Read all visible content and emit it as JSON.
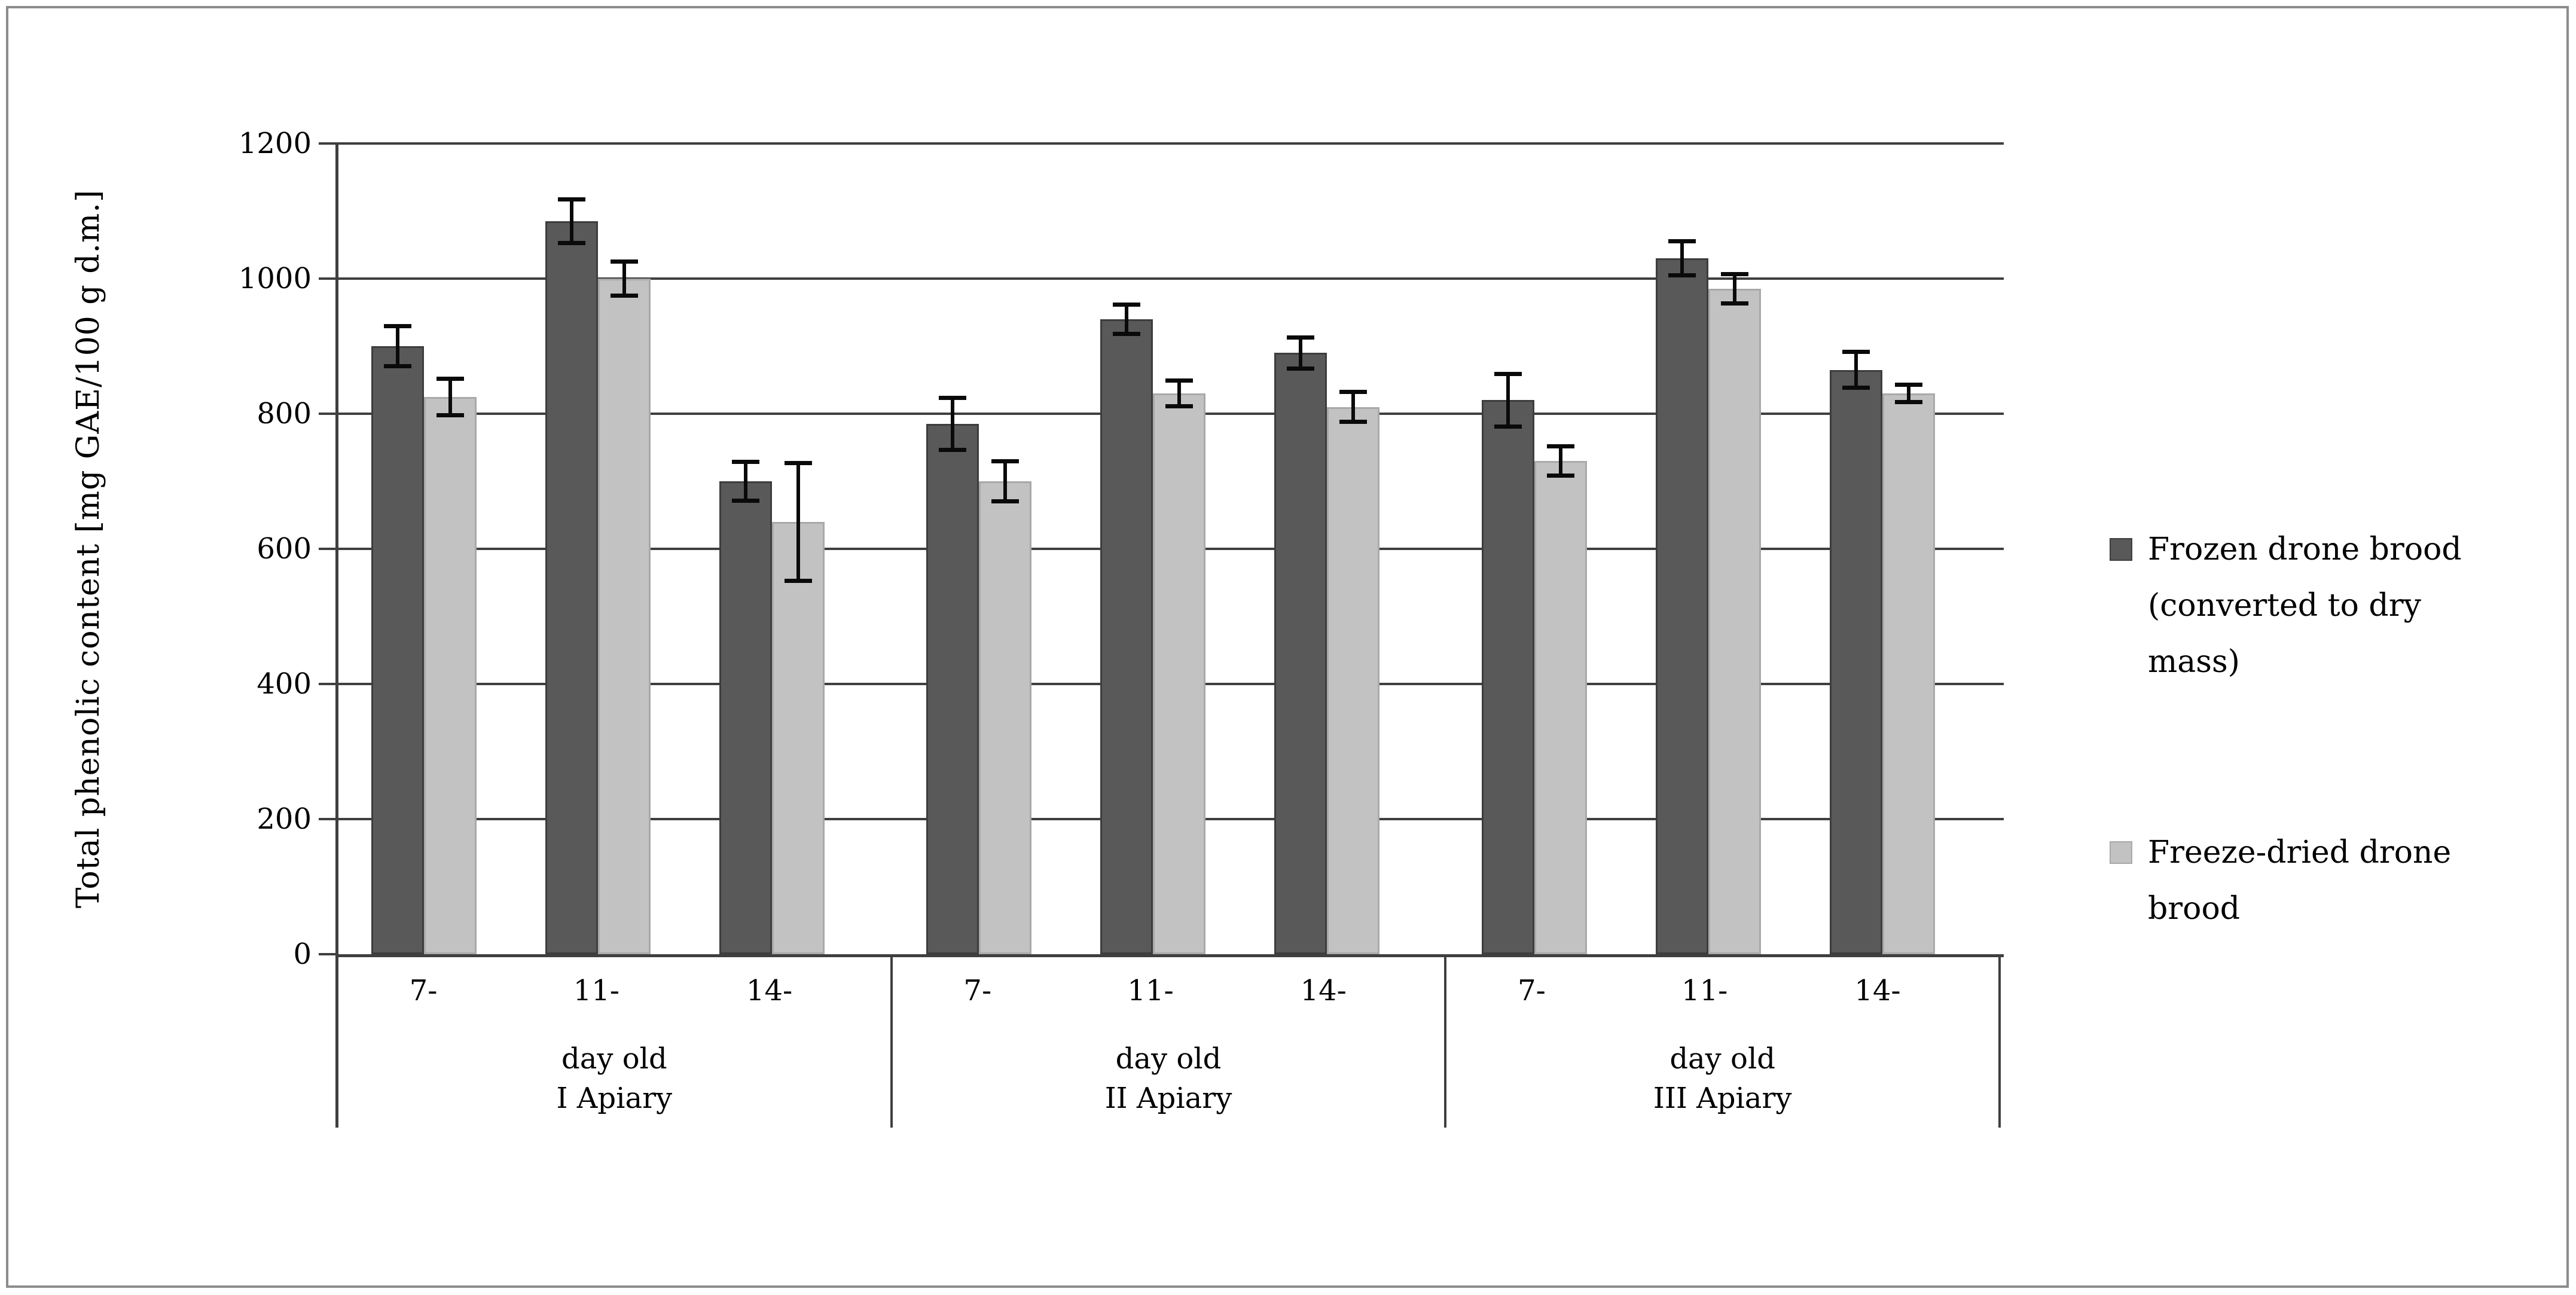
{
  "figure": {
    "background": "#ffffff",
    "frame_color": "#8c8c8c"
  },
  "colors": {
    "frozen_series": "#595959",
    "freeze_dried_series": "#c2c2c2",
    "gridline": "#3f3f3f",
    "axis": "#3f3f3f",
    "error_bar": "#0a0a0a"
  },
  "legend": {
    "items": [
      {
        "label": "Frozen drone brood (converted to dry mass)",
        "color": "#595959"
      },
      {
        "label": "Freeze-dried drone brood",
        "color": "#c2c2c2"
      }
    ]
  },
  "chart_data": {
    "type": "bar",
    "title": "",
    "ylabel": "Total phenolic content [mg GAE/100 g d.m.]",
    "xlabel": "",
    "ylim": [
      0,
      1200
    ],
    "y_ticks": [
      0,
      200,
      400,
      600,
      800,
      1000,
      1200
    ],
    "grid": true,
    "error_bars": true,
    "legend_position": "right",
    "groups": [
      {
        "apiary": "I Apiary",
        "sub_label": "day old",
        "categories": [
          "7-",
          "11-",
          "14-"
        ]
      },
      {
        "apiary": "II Apiary",
        "sub_label": "day old",
        "categories": [
          "7-",
          "11-",
          "14-"
        ]
      },
      {
        "apiary": "III Apiary",
        "sub_label": "day old",
        "categories": [
          "7-",
          "11-",
          "14-"
        ]
      }
    ],
    "series": [
      {
        "name": "Frozen drone brood (converted to dry mass)",
        "color": "#595959",
        "values": [
          [
            900,
            1085,
            700
          ],
          [
            785,
            940,
            890
          ],
          [
            820,
            1030,
            865
          ]
        ],
        "errors": [
          [
            33,
            35,
            32
          ],
          [
            42,
            25,
            26
          ],
          [
            42,
            28,
            30
          ]
        ]
      },
      {
        "name": "Freeze-dried drone brood",
        "color": "#c2c2c2",
        "values": [
          [
            825,
            1000,
            640
          ],
          [
            700,
            830,
            810
          ],
          [
            730,
            985,
            830
          ]
        ],
        "errors": [
          [
            30,
            28,
            90
          ],
          [
            33,
            22,
            25
          ],
          [
            25,
            25,
            16
          ]
        ]
      }
    ]
  }
}
